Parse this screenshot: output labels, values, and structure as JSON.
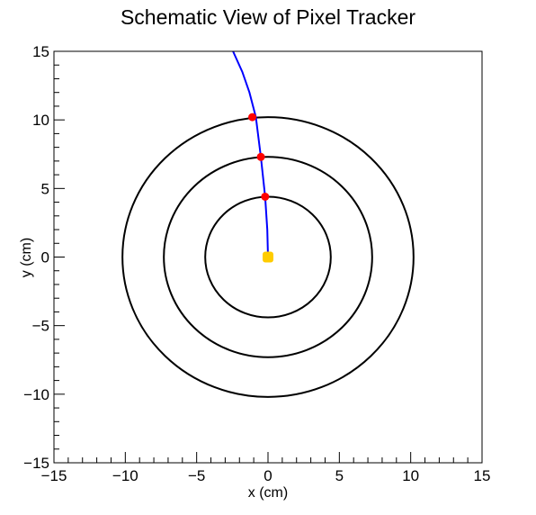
{
  "chart_data": {
    "type": "scatter",
    "title": "Schematic View of Pixel Tracker",
    "xlabel": "x (cm)",
    "ylabel": "y (cm)",
    "xlim": [
      -15,
      15
    ],
    "ylim": [
      -15,
      15
    ],
    "x_ticks": [
      -15,
      -10,
      -5,
      0,
      5,
      10,
      15
    ],
    "y_ticks": [
      -15,
      -10,
      -5,
      0,
      5,
      10,
      15
    ],
    "x_tick_labels": [
      "−15",
      "−10",
      "−5",
      "0",
      "5",
      "10",
      "15"
    ],
    "y_tick_labels": [
      "−15",
      "−10",
      "−5",
      "0",
      "5",
      "10",
      "15"
    ],
    "grid": false,
    "layers": [
      {
        "kind": "circle",
        "radius": 4.4,
        "color": "#000000"
      },
      {
        "kind": "circle",
        "radius": 7.3,
        "color": "#000000"
      },
      {
        "kind": "circle",
        "radius": 10.2,
        "color": "#000000"
      }
    ],
    "track": {
      "color": "#0000ff",
      "x": [
        0.0,
        -0.05,
        -0.2,
        -0.5,
        -0.85,
        -1.3,
        -1.8,
        -2.45
      ],
      "y": [
        0.0,
        2.0,
        4.4,
        7.3,
        10.2,
        12.0,
        13.5,
        15.0
      ]
    },
    "hits": {
      "color": "#ff0000",
      "x": [
        -0.2,
        -0.5,
        -1.1
      ],
      "y": [
        4.4,
        7.3,
        10.2
      ]
    },
    "vertex": {
      "color": "#ffcc00",
      "x": 0.0,
      "y": 0.0
    }
  }
}
